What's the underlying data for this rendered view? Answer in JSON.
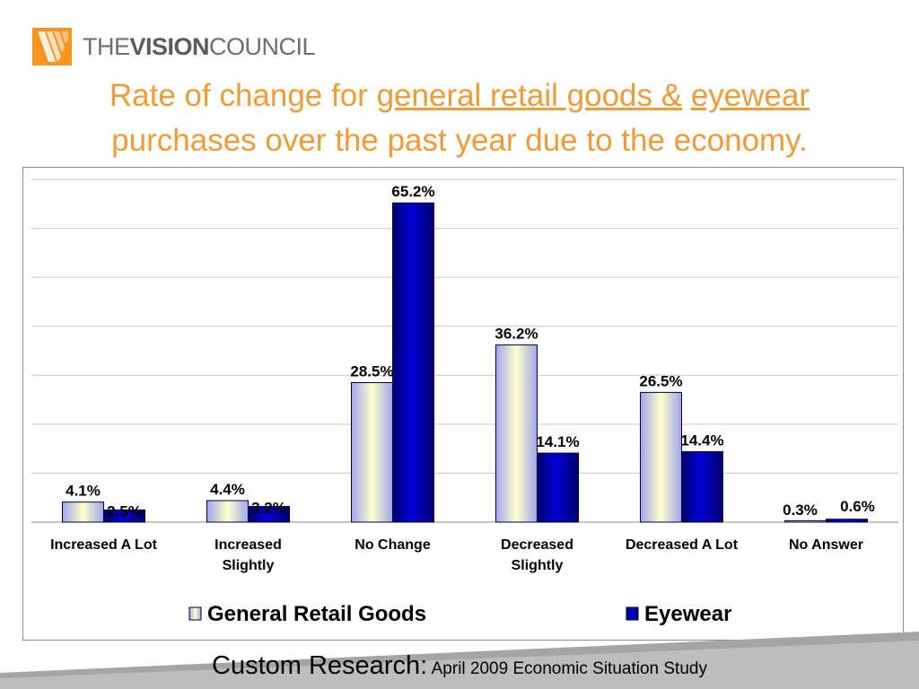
{
  "logo": {
    "word1": "THE",
    "word2": "VISION",
    "word3": "COUNCIL",
    "colors": {
      "mark": "#f7941d",
      "text": "#6d6e71"
    }
  },
  "title": {
    "part1": "Rate of change for ",
    "link1": "general retail goods &",
    "part2": " ",
    "link2": "eyewear",
    "line2": "purchases over the past year due to the economy.",
    "color": "#f39a33"
  },
  "chart_data": {
    "type": "bar",
    "categories": [
      [
        "Increased A Lot"
      ],
      [
        "Increased",
        "Slightly"
      ],
      [
        "No Change"
      ],
      [
        "Decreased",
        "Slightly"
      ],
      [
        "Decreased A Lot"
      ],
      [
        "No Answer"
      ]
    ],
    "series": [
      {
        "name": "General Retail Goods",
        "values": [
          4.1,
          4.4,
          28.5,
          36.2,
          26.5,
          0.3
        ],
        "labels": [
          "4.1%",
          "4.4%",
          "28.5%",
          "36.2%",
          "26.5%",
          "0.3%"
        ],
        "color": "#ffffcc"
      },
      {
        "name": "Eyewear",
        "values": [
          2.5,
          3.2,
          65.2,
          14.1,
          14.4,
          0.6
        ],
        "labels": [
          "2.5%",
          "3.2%",
          "65.2%",
          "14.1%",
          "14.4%",
          "0.6%"
        ],
        "color": "#0000cc"
      }
    ],
    "ylim": [
      0,
      70
    ],
    "grid": true,
    "legend": "bottom"
  },
  "footer": {
    "main": "Custom Research:",
    "sub": "April 2009 Economic Situation Study"
  }
}
